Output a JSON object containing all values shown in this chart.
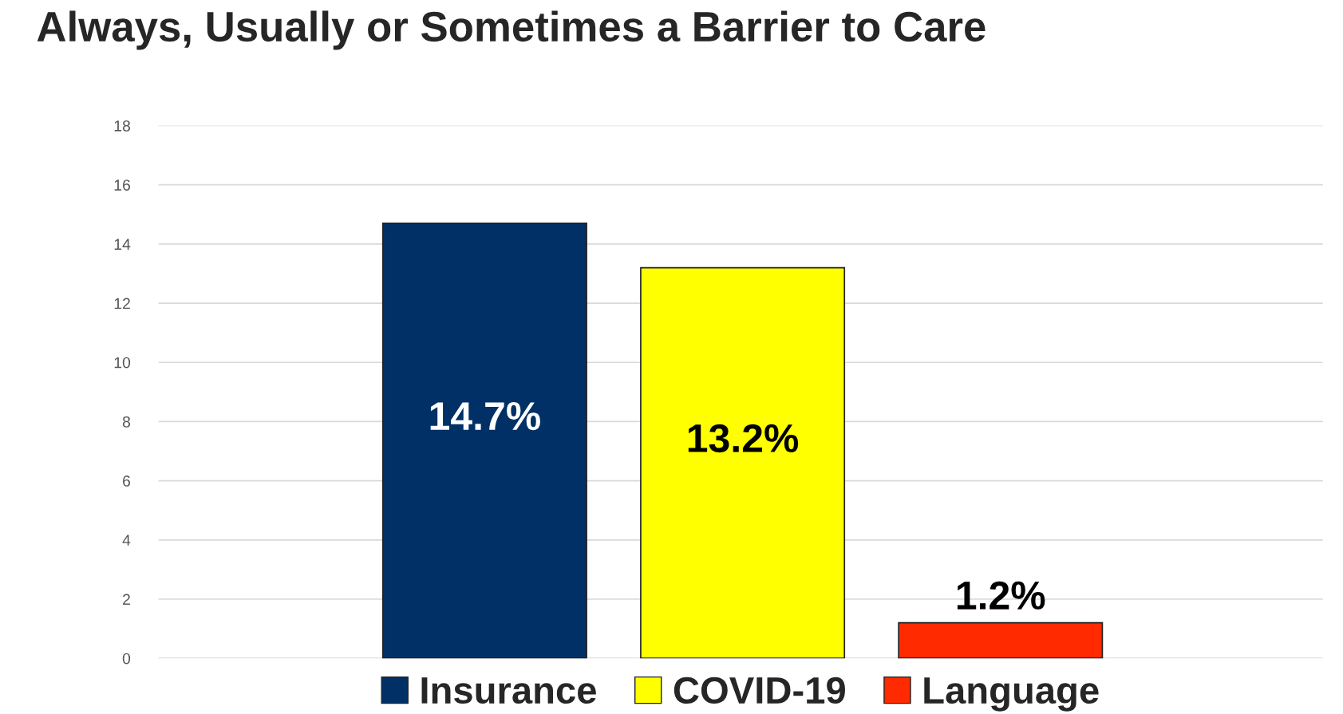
{
  "chart_data": {
    "type": "bar",
    "title": "Always, Usually or Sometimes a Barrier to Care",
    "categories": [
      null
    ],
    "series": [
      {
        "name": "Insurance",
        "color": "#003066",
        "values": [
          14.7
        ],
        "value_labels": [
          "14.7%"
        ]
      },
      {
        "name": "COVID-19",
        "color": "#ffff00",
        "values": [
          13.2
        ],
        "value_labels": [
          "13.2%"
        ]
      },
      {
        "name": "Language",
        "color": "#ff2a00",
        "values": [
          1.2
        ],
        "value_labels": [
          "1.2%"
        ]
      }
    ],
    "ylim": [
      0,
      18
    ],
    "yticks": [
      0,
      2,
      4,
      6,
      8,
      10,
      12,
      14,
      16,
      18
    ],
    "grid": "y",
    "legend": "bottom"
  }
}
